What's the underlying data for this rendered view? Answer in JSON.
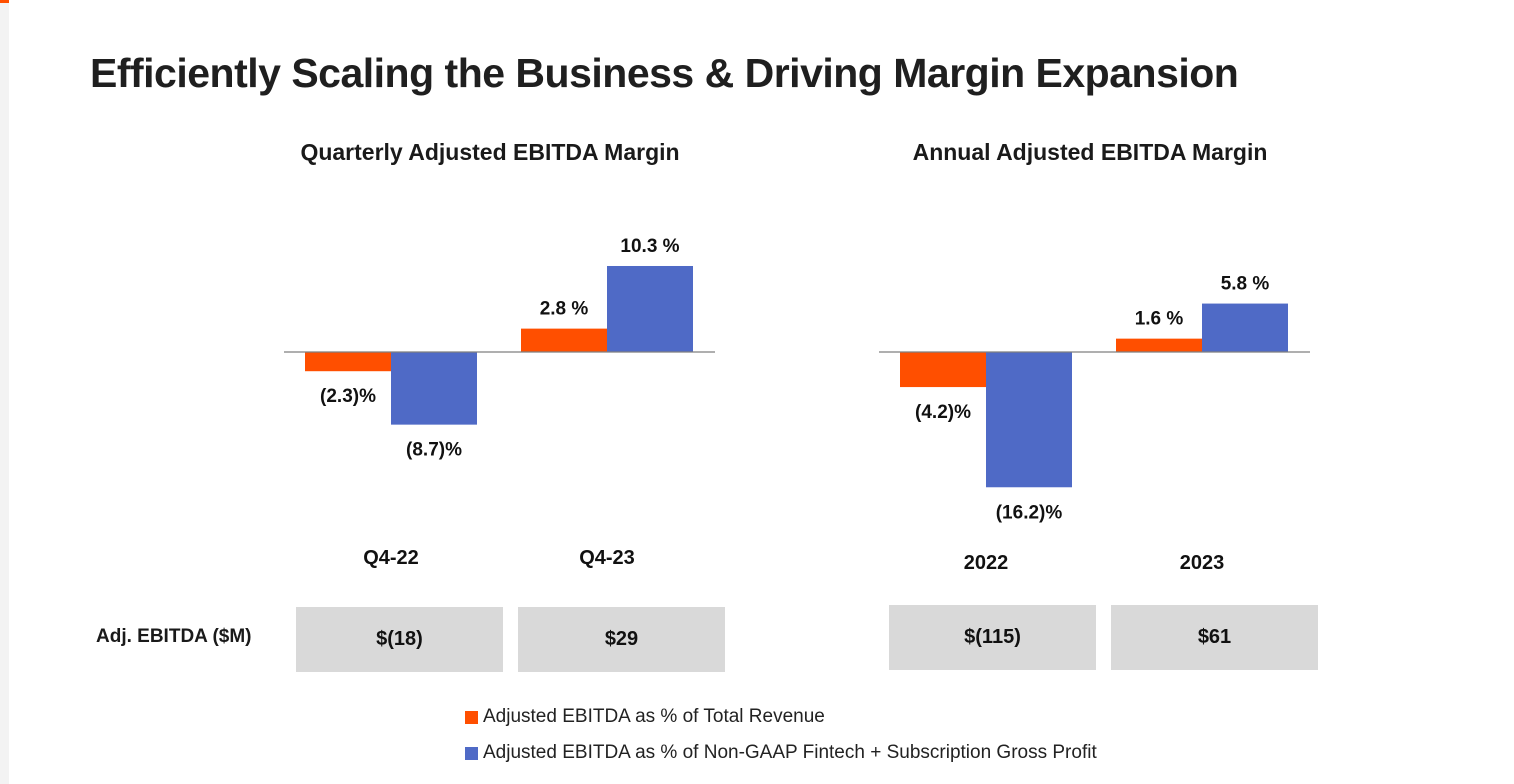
{
  "page": {
    "title": "Efficiently Scaling the Business & Driving Margin Expansion"
  },
  "colors": {
    "series_revenue": "#ff4f00",
    "series_gross_profit": "#4f6ac6",
    "axis": "#7f7f7f",
    "box": "#d9d9d9"
  },
  "chart_data": [
    {
      "type": "bar",
      "title": "Quarterly Adjusted EBITDA Margin",
      "categories": [
        "Q4-22",
        "Q4-23"
      ],
      "series": [
        {
          "name": "Adjusted EBITDA as % of Total Revenue",
          "values": [
            -2.3,
            2.8
          ],
          "labels": [
            "(2.3)%",
            "2.8 %"
          ]
        },
        {
          "name": "Adjusted EBITDA as % of Non-GAAP Fintech + Subscription Gross Profit",
          "values": [
            -8.7,
            10.3
          ],
          "labels": [
            "(8.7)%",
            "10.3 %"
          ]
        }
      ],
      "ylim": [
        -16.2,
        10.3
      ],
      "xlabel": "",
      "ylabel": "",
      "grid": false
    },
    {
      "type": "bar",
      "title": "Annual Adjusted EBITDA Margin",
      "categories": [
        "2022",
        "2023"
      ],
      "series": [
        {
          "name": "Adjusted EBITDA as % of Total Revenue",
          "values": [
            -4.2,
            1.6
          ],
          "labels": [
            "(4.2)%",
            "1.6 %"
          ]
        },
        {
          "name": "Adjusted EBITDA as % of Non-GAAP Fintech + Subscription Gross Profit",
          "values": [
            -16.2,
            5.8
          ],
          "labels": [
            "(16.2)%",
            "5.8 %"
          ]
        }
      ],
      "ylim": [
        -16.2,
        10.3
      ],
      "xlabel": "",
      "ylabel": "",
      "grid": false
    }
  ],
  "ebitda_table": {
    "row_label": "Adj. EBITDA ($M)",
    "quarterly": [
      "$(18)",
      "$29"
    ],
    "annual": [
      "$(115)",
      "$61"
    ]
  },
  "legend": {
    "items": [
      "Adjusted EBITDA as % of Total Revenue",
      "Adjusted EBITDA as % of Non-GAAP Fintech + Subscription Gross Profit"
    ]
  }
}
